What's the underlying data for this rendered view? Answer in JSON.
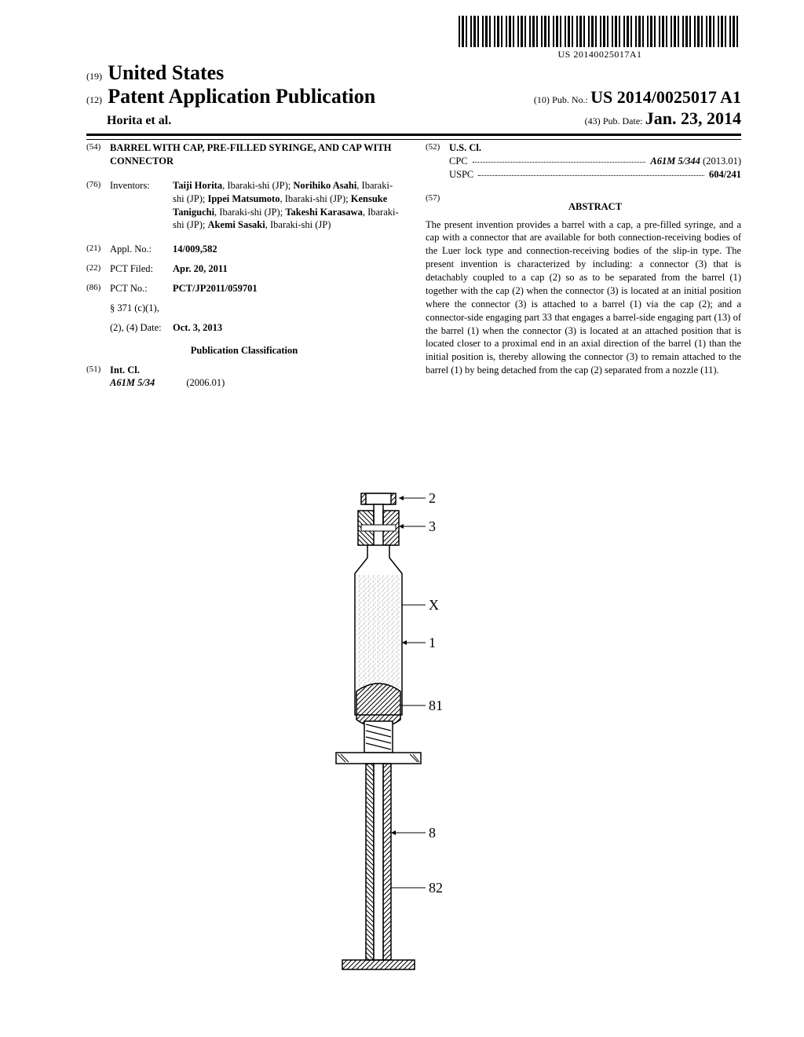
{
  "barcode": {
    "text": "US 20140025017A1"
  },
  "header": {
    "code19": "(19)",
    "country": "United States",
    "code12": "(12)",
    "pubType": "Patent Application Publication",
    "authors": "Horita et al.",
    "code10": "(10)",
    "pubNoLabel": "Pub. No.:",
    "pubNo": "US 2014/0025017 A1",
    "code43": "(43)",
    "pubDateLabel": "Pub. Date:",
    "pubDate": "Jan. 23, 2014"
  },
  "left": {
    "c54": "(54)",
    "title": "BARREL WITH CAP, PRE-FILLED SYRINGE, AND CAP WITH CONNECTOR",
    "c76": "(76)",
    "inventorsLabel": "Inventors:",
    "inventors": "<b>Taiji Horita</b>, Ibaraki-shi (JP); <b>Norihiko Asahi</b>, Ibaraki-shi (JP); <b>Ippei Matsumoto</b>, Ibaraki-shi (JP); <b>Kensuke Taniguchi</b>, Ibaraki-shi (JP); <b>Takeshi Karasawa</b>, Ibaraki-shi (JP); <b>Akemi Sasaki</b>, Ibaraki-shi (JP)",
    "c21": "(21)",
    "applLabel": "Appl. No.:",
    "applNo": "14/009,582",
    "c22": "(22)",
    "pctFiledLabel": "PCT Filed:",
    "pctFiled": "Apr. 20, 2011",
    "c86": "(86)",
    "pctNoLabel": "PCT No.:",
    "pctNo": "PCT/JP2011/059701",
    "s371_1": "§ 371 (c)(1),",
    "s371_2": "(2), (4) Date:",
    "s371Date": "Oct. 3, 2013",
    "classHeading": "Publication Classification",
    "c51": "(51)",
    "intClLabel": "Int. Cl.",
    "intClCode": "A61M 5/34",
    "intClDate": "(2006.01)"
  },
  "right": {
    "c52": "(52)",
    "usClLabel": "U.S. Cl.",
    "cpcLabel": "CPC",
    "cpcVal": "A61M 5/344",
    "cpcDate": "(2013.01)",
    "uspcLabel": "USPC",
    "uspcVal": "604/241",
    "c57": "(57)",
    "abstractHeading": "ABSTRACT",
    "abstract": "The present invention provides a barrel with a cap, a pre-filled syringe, and a cap with a connector that are available for both connection-receiving bodies of the Luer lock type and connection-receiving bodies of the slip-in type. The present invention is characterized by including: a connector (3) that is detachably coupled to a cap (2) so as to be separated from the barrel (1) together with the cap (2) when the connector (3) is located at an initial position where the connector (3) is attached to a barrel (1) via the cap (2); and a connector-side engaging part 33 that engages a barrel-side engaging part (13) of the barrel (1) when the connector (3) is located at an attached position that is located closer to a proximal end in an axial direction of the barrel (1) than the initial position is, thereby allowing the connector (3) to remain attached to the barrel (1) by being detached from the cap (2) separated from a nozzle (11)."
  },
  "figure": {
    "labels": [
      "2",
      "3",
      "X",
      "1",
      "81",
      "8",
      "82"
    ],
    "colors": {
      "line": "#000000",
      "hatch": "#000000",
      "fill": "#ffffff",
      "stipple": "#555555"
    }
  }
}
